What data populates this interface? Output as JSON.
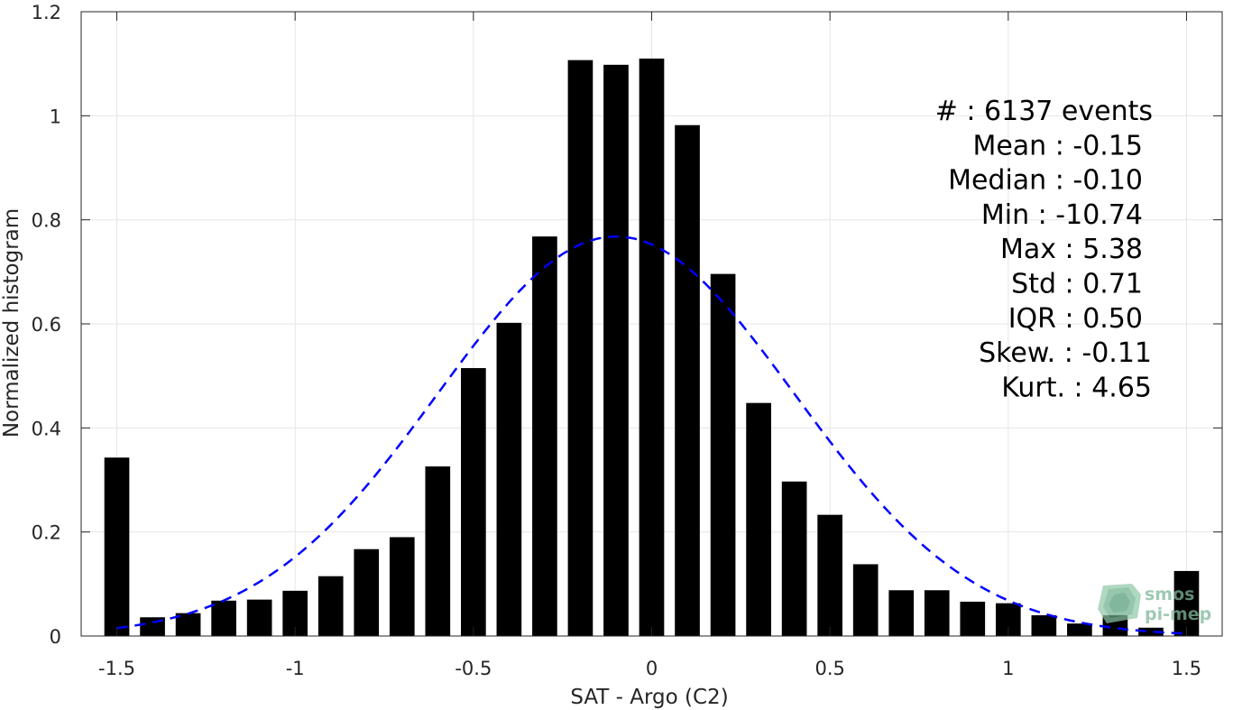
{
  "chart_data": {
    "type": "bar",
    "xlabel": "SAT - Argo (C2)",
    "ylabel": "Normalized histogram",
    "xlim": [
      -1.6,
      1.6
    ],
    "ylim": [
      0,
      1.2
    ],
    "xticks": [
      -1.5,
      -1,
      -0.5,
      0,
      0.5,
      1,
      1.5
    ],
    "xtick_labels": [
      "-1.5",
      "-1",
      "-0.5",
      "0",
      "0.5",
      "1",
      "1.5"
    ],
    "yticks": [
      0,
      0.2,
      0.4,
      0.6,
      0.8,
      1,
      1.2
    ],
    "ytick_labels": [
      "0",
      "0.2",
      "0.4",
      "0.6",
      "0.8",
      "1",
      "1.2"
    ],
    "grid": true,
    "bar_width": 0.07,
    "series": [
      {
        "x": [
          -1.5,
          -1.4,
          -1.3,
          -1.2,
          -1.1,
          -1.0,
          -0.9,
          -0.8,
          -0.7,
          -0.6,
          -0.5,
          -0.4,
          -0.3,
          -0.2,
          -0.1,
          0.0,
          0.1,
          0.2,
          0.3,
          0.4,
          0.5,
          0.6,
          0.7,
          0.8,
          0.9,
          1.0,
          1.1,
          1.2,
          1.3,
          1.4,
          1.5
        ],
        "values": [
          0.343,
          0.036,
          0.044,
          0.068,
          0.07,
          0.087,
          0.115,
          0.167,
          0.19,
          0.326,
          0.515,
          0.602,
          0.768,
          1.107,
          1.098,
          1.11,
          0.982,
          0.696,
          0.448,
          0.297,
          0.233,
          0.138,
          0.088,
          0.088,
          0.066,
          0.063,
          0.04,
          0.024,
          0.04,
          0.016,
          0.125
        ],
        "color": "#000000"
      }
    ],
    "fit_curve": {
      "style": "dashed",
      "color": "#0000ff",
      "mean": -0.1,
      "std": 0.5,
      "peak": 0.768,
      "x_range": [
        -1.5,
        1.5
      ]
    },
    "stats": [
      "#  : 6137 events",
      "Mean : -0.15",
      "Median : -0.10",
      "Min : -10.74",
      "Max : 5.38",
      "Std : 0.71",
      "IQR : 0.50",
      "Skew. : -0.11",
      "Kurt. : 4.65"
    ]
  },
  "logo": {
    "line1": "smos",
    "line2": "pi-mep"
  }
}
